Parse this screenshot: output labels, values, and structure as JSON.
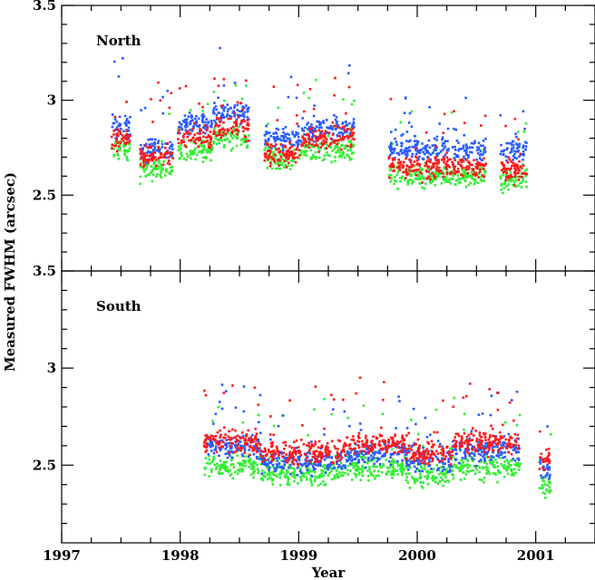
{
  "chart_data": {
    "type": "scatter",
    "xlabel": "Year",
    "ylabel": "Measured FWHM (arcsec)",
    "xlim": [
      1997,
      2001.5
    ],
    "x_ticks": [
      "1997",
      "1998",
      "1999",
      "2000",
      "2001"
    ],
    "colors": {
      "blue": "#2a5cff",
      "red": "#ff1a1a",
      "green": "#33ee33"
    },
    "panels": [
      {
        "label": "North",
        "ylim": [
          2.1,
          3.5
        ],
        "y_ticks": [
          "2.5",
          "3",
          "3.5"
        ],
        "segments": [
          {
            "x": [
              1997.42,
              1997.58
            ],
            "blue": 2.86,
            "red": 2.79,
            "green": 2.74
          },
          {
            "x": [
              1997.66,
              1997.94
            ],
            "blue": 2.75,
            "red": 2.7,
            "green": 2.64
          },
          {
            "x": [
              1997.98,
              1998.27
            ],
            "blue": 2.87,
            "red": 2.8,
            "green": 2.74
          },
          {
            "x": [
              1998.27,
              1998.58
            ],
            "blue": 2.93,
            "red": 2.86,
            "green": 2.8
          },
          {
            "x": [
              1998.71,
              1999.02
            ],
            "blue": 2.8,
            "red": 2.72,
            "green": 2.7
          },
          {
            "x": [
              1999.02,
              1999.47
            ],
            "blue": 2.85,
            "red": 2.8,
            "green": 2.74
          },
          {
            "x": [
              1999.76,
              2000.58
            ],
            "blue": 2.74,
            "red": 2.65,
            "green": 2.6
          },
          {
            "x": [
              2000.7,
              2000.93
            ],
            "blue": 2.74,
            "red": 2.63,
            "green": 2.58
          }
        ]
      },
      {
        "label": "South",
        "ylim": [
          2.1,
          3.5
        ],
        "y_ticks": [
          "2.5",
          "3",
          "3.5"
        ],
        "segments": [
          {
            "x": [
              1998.2,
              1998.68
            ],
            "blue": 2.6,
            "red": 2.62,
            "green": 2.5
          },
          {
            "x": [
              1998.68,
              1999.4
            ],
            "blue": 2.52,
            "red": 2.57,
            "green": 2.46
          },
          {
            "x": [
              1999.4,
              1999.9
            ],
            "blue": 2.56,
            "red": 2.61,
            "green": 2.49
          },
          {
            "x": [
              1999.9,
              2000.3
            ],
            "blue": 2.52,
            "red": 2.56,
            "green": 2.45
          },
          {
            "x": [
              2000.3,
              2000.87
            ],
            "blue": 2.58,
            "red": 2.62,
            "green": 2.49
          },
          {
            "x": [
              2001.03,
              2001.13
            ],
            "blue": 2.48,
            "red": 2.53,
            "green": 2.4
          }
        ]
      }
    ]
  }
}
